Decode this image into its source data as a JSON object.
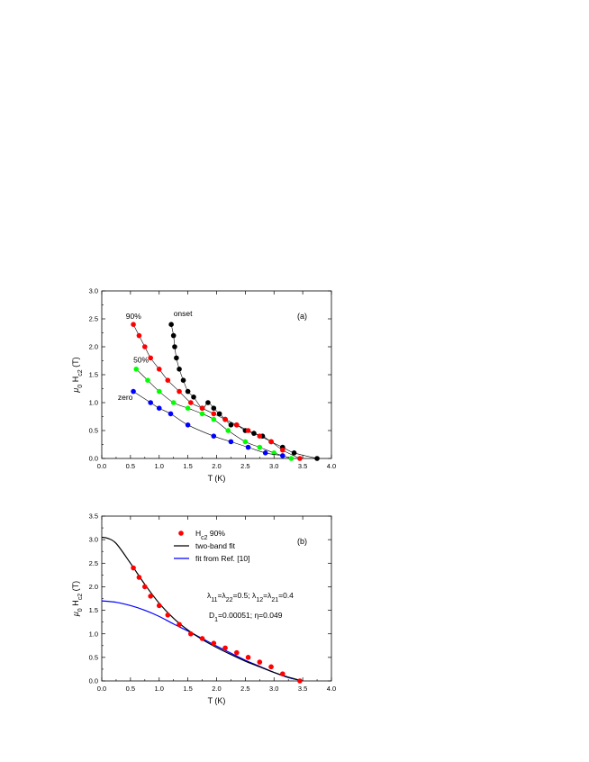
{
  "chart_data": [
    {
      "panel_label": "(a)",
      "type": "scatter",
      "xlabel": "T (K)",
      "ylabel_symbol": "μ",
      "ylabel_sub": "0",
      "ylabel_main": " H",
      "ylabel_main_sub": "c2",
      "ylabel_tail": " (T)",
      "xlim": [
        0.0,
        4.0
      ],
      "ylim": [
        0.0,
        3.0
      ],
      "xticks": [
        "0.0",
        "0.5",
        "1.0",
        "1.5",
        "2.0",
        "2.5",
        "3.0",
        "3.5",
        "4.0"
      ],
      "yticks": [
        "0.0",
        "0.5",
        "1.0",
        "1.5",
        "2.0",
        "2.5",
        "3.0"
      ],
      "series": [
        {
          "name": "onset",
          "color": "#000000",
          "x": [
            1.21,
            1.25,
            1.27,
            1.3,
            1.35,
            1.42,
            1.5,
            1.6,
            1.75,
            1.85,
            1.95,
            2.05,
            2.15,
            2.25,
            2.35,
            2.5,
            2.65,
            2.8,
            2.95,
            3.15,
            3.35,
            3.75
          ],
          "y": [
            2.4,
            2.2,
            2.0,
            1.8,
            1.6,
            1.4,
            1.2,
            1.1,
            0.9,
            1.0,
            0.9,
            0.8,
            0.7,
            0.6,
            0.6,
            0.5,
            0.45,
            0.4,
            0.3,
            0.2,
            0.1,
            0.0
          ]
        },
        {
          "name": "90%",
          "color": "#ff0000",
          "x": [
            0.55,
            0.65,
            0.75,
            0.85,
            1.0,
            1.15,
            1.35,
            1.55,
            1.75,
            1.95,
            2.15,
            2.35,
            2.55,
            2.75,
            2.95,
            3.15,
            3.45
          ],
          "y": [
            2.4,
            2.2,
            2.0,
            1.8,
            1.6,
            1.4,
            1.2,
            1.0,
            0.9,
            0.8,
            0.7,
            0.6,
            0.5,
            0.4,
            0.3,
            0.15,
            0.0
          ]
        },
        {
          "name": "50%",
          "color": "#00ff00",
          "x": [
            0.6,
            0.8,
            1.0,
            1.25,
            1.5,
            1.75,
            1.95,
            2.2,
            2.5,
            2.75,
            3.0,
            3.3
          ],
          "y": [
            1.6,
            1.4,
            1.2,
            1.0,
            0.9,
            0.8,
            0.7,
            0.5,
            0.3,
            0.2,
            0.1,
            0.0
          ]
        },
        {
          "name": "zero",
          "color": "#0000ff",
          "x": [
            0.55,
            0.85,
            1.0,
            1.2,
            1.5,
            1.95,
            2.25,
            2.55,
            2.85,
            3.15
          ],
          "y": [
            1.2,
            1.0,
            0.9,
            0.8,
            0.6,
            0.4,
            0.3,
            0.2,
            0.1,
            0.05
          ]
        }
      ]
    },
    {
      "panel_label": "(b)",
      "type": "scatter",
      "xlabel": "T (K)",
      "ylabel_symbol": "μ",
      "ylabel_sub": "0",
      "ylabel_main": " H",
      "ylabel_main_sub": "c2",
      "ylabel_tail": " (T)",
      "xlim": [
        0.0,
        4.0
      ],
      "ylim": [
        0.0,
        3.5
      ],
      "xticks": [
        "0.0",
        "0.5",
        "1.0",
        "1.5",
        "2.0",
        "2.5",
        "3.0",
        "3.5",
        "4.0"
      ],
      "yticks": [
        "0.0",
        "0.5",
        "1.0",
        "1.5",
        "2.0",
        "2.5",
        "3.0",
        "3.5"
      ],
      "series": [
        {
          "name": "H",
          "name_sub": "c2",
          "name_tail": " 90%",
          "color": "#ff0000",
          "x": [
            0.55,
            0.65,
            0.75,
            0.85,
            1.0,
            1.15,
            1.35,
            1.55,
            1.75,
            1.95,
            2.15,
            2.35,
            2.55,
            2.75,
            2.95,
            3.15,
            3.45
          ],
          "y": [
            2.4,
            2.2,
            2.0,
            1.8,
            1.6,
            1.4,
            1.2,
            1.0,
            0.9,
            0.8,
            0.7,
            0.6,
            0.5,
            0.4,
            0.3,
            0.15,
            0.0
          ]
        },
        {
          "name": "two-band fit",
          "color": "#000000",
          "x": [
            0.0,
            0.1,
            0.25,
            0.5,
            0.75,
            1.0,
            1.25,
            1.5,
            1.75,
            2.0,
            2.25,
            2.5,
            2.75,
            3.0,
            3.25,
            3.5
          ],
          "y": [
            3.05,
            3.03,
            2.92,
            2.5,
            2.05,
            1.65,
            1.33,
            1.08,
            0.88,
            0.71,
            0.56,
            0.42,
            0.3,
            0.18,
            0.08,
            0.0
          ]
        },
        {
          "name": "fit from Ref. [10]",
          "color": "#0000ff",
          "x": [
            0.0,
            0.25,
            0.5,
            0.75,
            1.0,
            1.25,
            1.5,
            1.75,
            2.0,
            2.25,
            2.5,
            2.75,
            3.0,
            3.25,
            3.5
          ],
          "y": [
            1.7,
            1.67,
            1.6,
            1.5,
            1.37,
            1.21,
            1.06,
            0.9,
            0.74,
            0.59,
            0.44,
            0.31,
            0.18,
            0.07,
            0.0
          ]
        }
      ],
      "annotations": [
        {
          "parts": [
            [
              "λ",
              ""
            ],
            [
              "11",
              "sub"
            ],
            [
              "=λ",
              ""
            ],
            [
              "22",
              "sub"
            ],
            [
              "=0.5; λ",
              ""
            ],
            [
              "12",
              "sub"
            ],
            [
              "=λ",
              ""
            ],
            [
              "21",
              "sub"
            ],
            [
              "=0.4",
              ""
            ]
          ]
        },
        {
          "parts": [
            [
              "D",
              ""
            ],
            [
              "1",
              "sub"
            ],
            [
              "=0.00051; η=0.049",
              ""
            ]
          ]
        }
      ]
    }
  ]
}
